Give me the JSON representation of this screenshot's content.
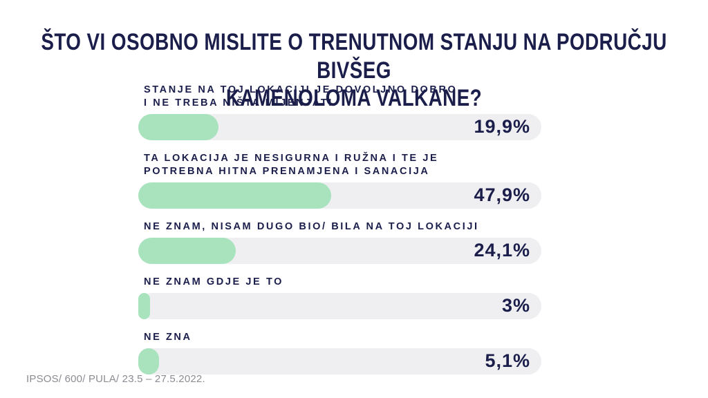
{
  "title": "ŠTO VI OSOBNO MISLITE O TRENUTNOM STANJU NA PODRUČJU BIVŠEG KAMENOLOMA VALKANE?",
  "title_lines": [
    "ŠTO VI OSOBNO MISLITE O TRENUTNOM STANJU NA PODRUČJU BIVŠEG",
    "KAMENOLOMA VALKANE?"
  ],
  "source_note": "IPSOS/ 600/ PULA/ 23.5 – 27.5.2022.",
  "colors": {
    "navy": "#1b1e4b",
    "green": "#a8e3be",
    "track": "#efeff1",
    "gray": "#8b8b93"
  },
  "chart_data": {
    "type": "bar",
    "orientation": "horizontal",
    "title": "ŠTO VI OSOBNO MISLITE O TRENUTNOM STANJU NA PODRUČJU BIVŠEG KAMENOLOMA VALKANE?",
    "xlim": [
      0,
      100
    ],
    "value_suffix": "%",
    "grid": false,
    "legend": false,
    "categories": [
      "STANJE NA TOJ LOKACIJI JE DOVOLJNO DOBRO I NE TREBA NIŠTA MIJENJATI",
      "TA LOKACIJA JE NESIGURNA I RUŽNA I TE JE POTREBNA HITNA PRENAMJENA I SANACIJA",
      "NE ZNAM, NISAM DUGO BIO/ BILA NA TOJ LOKACIJI",
      "NE ZNAM GDJE JE TO",
      "NE ZNA"
    ],
    "values": [
      19.9,
      47.9,
      24.1,
      3,
      5.1
    ],
    "bars": [
      {
        "label_lines": [
          "STANJE NA TOJ LOKACIJI JE DOVOLJNO DOBRO",
          "I NE TREBA NIŠTA MIJENJATI"
        ],
        "value": 19.9,
        "value_label": "19,9%"
      },
      {
        "label_lines": [
          "TA LOKACIJA JE NESIGURNA I RUŽNA I TE JE",
          "POTREBNA HITNA PRENAMJENA I SANACIJA"
        ],
        "value": 47.9,
        "value_label": "47,9%"
      },
      {
        "label_lines": [
          "NE ZNAM, NISAM DUGO BIO/ BILA NA TOJ LOKACIJI"
        ],
        "value": 24.1,
        "value_label": "24,1%"
      },
      {
        "label_lines": [
          "NE ZNAM GDJE JE TO"
        ],
        "value": 3,
        "value_label": "3%"
      },
      {
        "label_lines": [
          "NE ZNA"
        ],
        "value": 5.1,
        "value_label": "5,1%"
      }
    ]
  }
}
